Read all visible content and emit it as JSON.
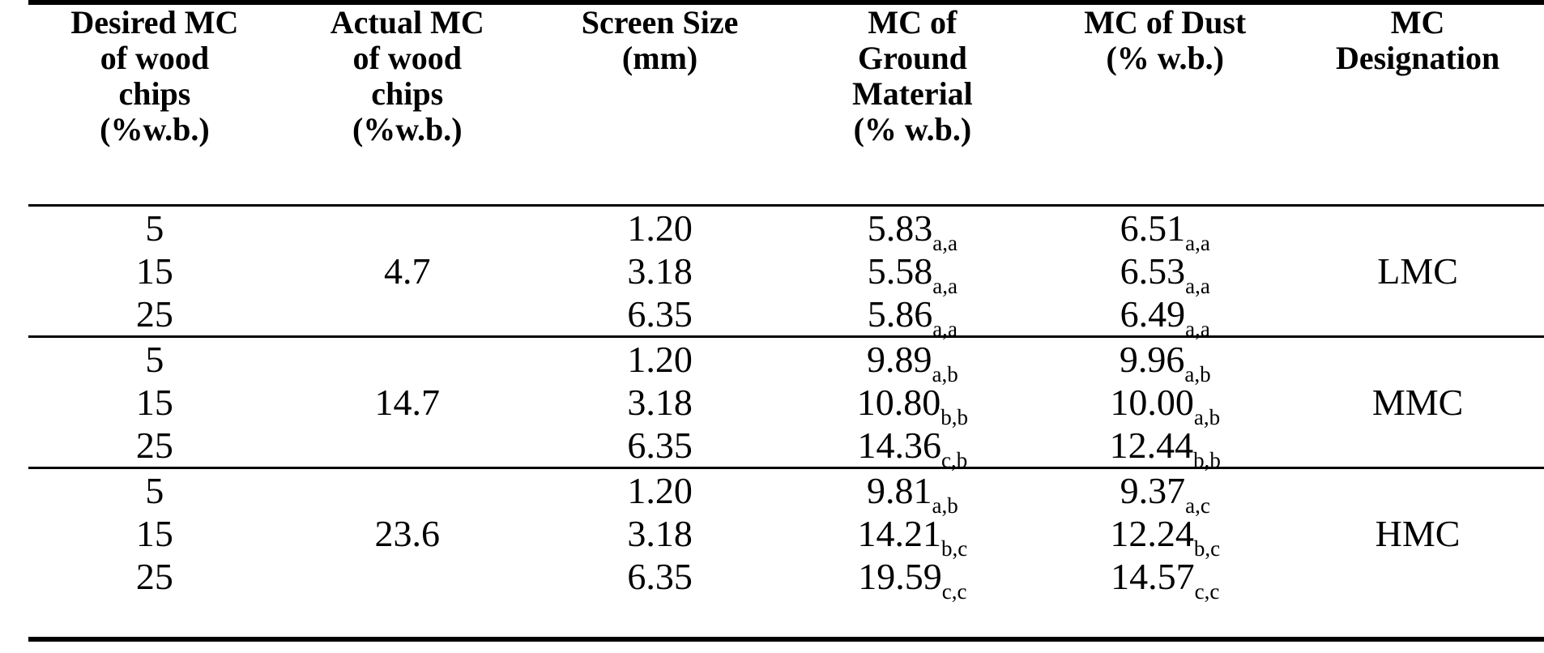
{
  "table": {
    "columns": [
      {
        "label": "Desired MC\nof wood\nchips\n(%w.b.)"
      },
      {
        "label": "Actual MC\nof wood\nchips\n(%w.b.)"
      },
      {
        "label": "Screen Size\n(mm)"
      },
      {
        "label": "MC of\nGround\nMaterial\n(% w.b.)"
      },
      {
        "label": "MC of Dust\n(% w.b.)"
      },
      {
        "label": "MC\nDesignation"
      }
    ],
    "groups": [
      {
        "actual": "4.7",
        "designation": "LMC",
        "rows": [
          {
            "desired": "5",
            "screen": "1.20",
            "ground": "5.83",
            "ground_sub": "a,a",
            "dust": "6.51",
            "dust_sub": "a,a"
          },
          {
            "desired": "15",
            "screen": "3.18",
            "ground": "5.58",
            "ground_sub": "a,a",
            "dust": "6.53",
            "dust_sub": "a,a"
          },
          {
            "desired": "25",
            "screen": "6.35",
            "ground": "5.86",
            "ground_sub": "a,a",
            "dust": "6.49",
            "dust_sub": "a,a"
          }
        ]
      },
      {
        "actual": "14.7",
        "designation": "MMC",
        "rows": [
          {
            "desired": "5",
            "screen": "1.20",
            "ground": "9.89",
            "ground_sub": "a,b",
            "dust": "9.96",
            "dust_sub": "a,b"
          },
          {
            "desired": "15",
            "screen": "3.18",
            "ground": "10.80",
            "ground_sub": "b,b",
            "dust": "10.00",
            "dust_sub": "a,b"
          },
          {
            "desired": "25",
            "screen": "6.35",
            "ground": "14.36",
            "ground_sub": "c,b",
            "dust": "12.44",
            "dust_sub": "b,b"
          }
        ]
      },
      {
        "actual": "23.6",
        "designation": "HMC",
        "rows": [
          {
            "desired": "5",
            "screen": "1.20",
            "ground": "9.81",
            "ground_sub": "a,b",
            "dust": "9.37",
            "dust_sub": "a,c"
          },
          {
            "desired": "15",
            "screen": "3.18",
            "ground": "14.21",
            "ground_sub": "b,c",
            "dust": "12.24",
            "dust_sub": "b,c"
          },
          {
            "desired": "25",
            "screen": "6.35",
            "ground": "19.59",
            "ground_sub": "c,c",
            "dust": "14.57",
            "dust_sub": "c,c"
          }
        ]
      }
    ]
  }
}
